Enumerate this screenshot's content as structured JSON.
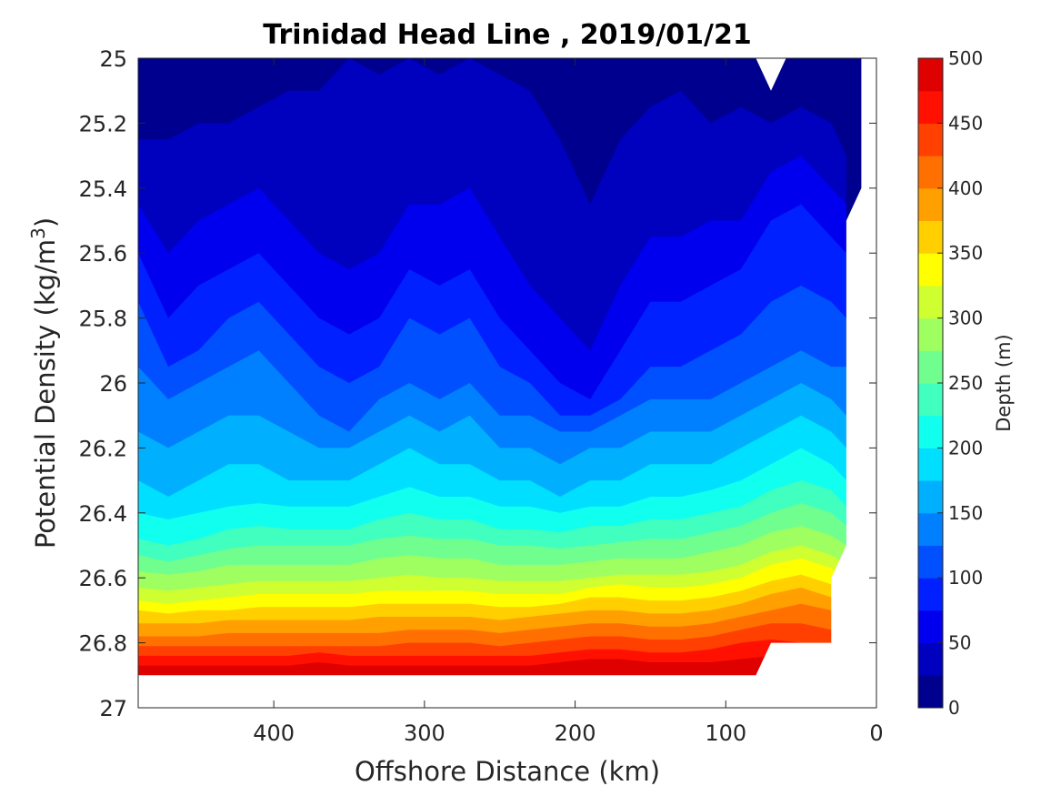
{
  "chart_data": {
    "type": "contour",
    "title": "Trinidad Head Line , 2019/01/21",
    "xlabel": "Offshore Distance (km)",
    "ylabel": "Potential Density (kg/m",
    "ylabel_sup": "3",
    "ylabel_end": ")",
    "colorbar_label": "Depth (m)",
    "x_reversed": true,
    "y_reversed": true,
    "xlim": [
      0,
      490
    ],
    "ylim": [
      25,
      27
    ],
    "xticks": [
      "400",
      "300",
      "200",
      "100",
      "0"
    ],
    "yticks": [
      "25",
      "25.2",
      "25.4",
      "25.6",
      "25.8",
      "26",
      "26.2",
      "26.4",
      "26.6",
      "26.8",
      "27"
    ],
    "colorbar_ticks": [
      "0",
      "50",
      "100",
      "150",
      "200",
      "250",
      "300",
      "350",
      "400",
      "450",
      "500"
    ],
    "clim": [
      0,
      500
    ],
    "contour_step": 25,
    "colormap": [
      "#00008f",
      "#0000bf",
      "#0000ef",
      "#0020ff",
      "#0050ff",
      "#0080ff",
      "#00b0ff",
      "#00dfff",
      "#10ffef",
      "#40ffbf",
      "#70ff8f",
      "#a0ff60",
      "#cfff30",
      "#ffff00",
      "#ffcf00",
      "#ff9f00",
      "#ff7000",
      "#ff4000",
      "#ff1000",
      "#df0000"
    ],
    "x_distance_km": [
      490,
      470,
      450,
      430,
      410,
      390,
      370,
      350,
      330,
      310,
      290,
      270,
      250,
      230,
      210,
      190,
      170,
      150,
      130,
      110,
      90,
      70,
      50,
      30,
      20
    ],
    "depth_isopycnals": [
      {
        "depth": 25,
        "sigma": [
          25.25,
          25.25,
          25.2,
          25.2,
          25.15,
          25.1,
          25.1,
          25.0,
          25.05,
          25.0,
          25.05,
          25.0,
          25.05,
          25.1,
          25.25,
          25.45,
          25.25,
          25.15,
          25.1,
          25.2,
          25.15,
          25.2,
          25.15,
          25.2,
          25.3
        ]
      },
      {
        "depth": 50,
        "sigma": [
          25.45,
          25.6,
          25.5,
          25.45,
          25.4,
          25.5,
          25.6,
          25.65,
          25.6,
          25.45,
          25.45,
          25.4,
          25.55,
          25.7,
          25.8,
          25.9,
          25.7,
          25.55,
          25.55,
          25.5,
          25.5,
          25.35,
          25.3,
          25.4,
          25.45
        ]
      },
      {
        "depth": 75,
        "sigma": [
          25.6,
          25.8,
          25.7,
          25.65,
          25.6,
          25.7,
          25.8,
          25.85,
          25.8,
          25.65,
          25.7,
          25.65,
          25.8,
          25.9,
          26.0,
          26.05,
          25.9,
          25.75,
          25.75,
          25.7,
          25.65,
          25.5,
          25.45,
          25.55,
          25.6
        ]
      },
      {
        "depth": 100,
        "sigma": [
          25.75,
          25.95,
          25.9,
          25.8,
          25.75,
          25.85,
          25.95,
          26.0,
          25.95,
          25.8,
          25.85,
          25.8,
          25.95,
          26.0,
          26.1,
          26.1,
          26.05,
          25.95,
          25.95,
          25.9,
          25.85,
          25.75,
          25.7,
          25.75,
          25.8
        ]
      },
      {
        "depth": 125,
        "sigma": [
          25.95,
          26.05,
          26.0,
          25.95,
          25.9,
          26.0,
          26.1,
          26.15,
          26.05,
          26.0,
          26.05,
          26.0,
          26.1,
          26.1,
          26.15,
          26.15,
          26.1,
          26.05,
          26.05,
          26.05,
          26.0,
          25.95,
          25.9,
          25.95,
          25.95
        ]
      },
      {
        "depth": 150,
        "sigma": [
          26.15,
          26.2,
          26.15,
          26.1,
          26.1,
          26.15,
          26.2,
          26.2,
          26.15,
          26.1,
          26.15,
          26.1,
          26.2,
          26.2,
          26.25,
          26.2,
          26.2,
          26.15,
          26.15,
          26.15,
          26.1,
          26.05,
          26.0,
          26.05,
          26.1
        ]
      },
      {
        "depth": 175,
        "sigma": [
          26.3,
          26.35,
          26.3,
          26.25,
          26.25,
          26.3,
          26.3,
          26.3,
          26.25,
          26.2,
          26.25,
          26.25,
          26.3,
          26.3,
          26.35,
          26.3,
          26.3,
          26.25,
          26.25,
          26.25,
          26.2,
          26.15,
          26.1,
          26.15,
          26.2
        ]
      },
      {
        "depth": 200,
        "sigma": [
          26.4,
          26.42,
          26.4,
          26.38,
          26.37,
          26.38,
          26.38,
          26.38,
          26.35,
          26.32,
          26.35,
          26.35,
          26.38,
          26.38,
          26.4,
          26.38,
          26.38,
          26.35,
          26.35,
          26.33,
          26.3,
          26.25,
          26.2,
          26.25,
          26.3
        ]
      },
      {
        "depth": 225,
        "sigma": [
          26.48,
          26.5,
          26.48,
          26.45,
          26.44,
          26.45,
          26.45,
          26.45,
          26.42,
          26.4,
          26.42,
          26.42,
          26.45,
          26.45,
          26.46,
          26.44,
          26.44,
          26.42,
          26.42,
          26.4,
          26.38,
          26.33,
          26.3,
          26.33,
          26.38
        ]
      },
      {
        "depth": 250,
        "sigma": [
          26.53,
          26.55,
          26.53,
          26.51,
          26.5,
          26.5,
          26.5,
          26.5,
          26.48,
          26.47,
          26.48,
          26.48,
          26.5,
          26.5,
          26.51,
          26.5,
          26.49,
          26.48,
          26.48,
          26.46,
          26.44,
          26.4,
          26.37,
          26.4,
          26.44
        ]
      },
      {
        "depth": 275,
        "sigma": [
          26.58,
          26.59,
          26.58,
          26.56,
          26.56,
          26.56,
          26.56,
          26.56,
          26.54,
          26.53,
          26.54,
          26.54,
          26.56,
          26.56,
          26.56,
          26.55,
          26.54,
          26.54,
          26.54,
          26.52,
          26.5,
          26.46,
          26.44,
          26.47,
          26.5
        ]
      },
      {
        "depth": 300,
        "sigma": [
          26.63,
          26.64,
          26.63,
          26.62,
          26.61,
          26.61,
          26.61,
          26.61,
          26.6,
          26.59,
          26.6,
          26.6,
          26.61,
          26.61,
          26.61,
          26.6,
          26.59,
          26.59,
          26.59,
          26.58,
          26.56,
          26.52,
          26.5,
          26.53,
          26.56
        ]
      },
      {
        "depth": 325,
        "sigma": [
          26.67,
          26.68,
          26.67,
          26.66,
          26.65,
          26.65,
          26.65,
          26.65,
          26.64,
          26.64,
          26.64,
          26.64,
          26.65,
          26.65,
          26.65,
          26.63,
          26.62,
          26.63,
          26.63,
          26.62,
          26.6,
          26.56,
          26.54,
          26.57,
          26.6
        ]
      },
      {
        "depth": 350,
        "sigma": [
          26.7,
          26.71,
          26.7,
          26.7,
          26.69,
          26.69,
          26.69,
          26.69,
          26.68,
          26.68,
          26.68,
          26.68,
          26.69,
          26.69,
          26.68,
          26.66,
          26.66,
          26.67,
          26.67,
          26.66,
          26.64,
          26.61,
          26.59,
          26.62,
          26.65
        ]
      },
      {
        "depth": 375,
        "sigma": [
          26.74,
          26.74,
          26.74,
          26.73,
          26.73,
          26.73,
          26.73,
          26.73,
          26.72,
          26.72,
          26.72,
          26.72,
          26.73,
          26.72,
          26.71,
          26.7,
          26.7,
          26.71,
          26.71,
          26.7,
          26.68,
          26.65,
          26.63,
          26.66,
          26.69
        ]
      },
      {
        "depth": 400,
        "sigma": [
          26.78,
          26.78,
          26.78,
          26.77,
          26.77,
          26.77,
          26.77,
          26.77,
          26.77,
          26.76,
          26.76,
          26.76,
          26.77,
          26.76,
          26.75,
          26.74,
          26.74,
          26.75,
          26.75,
          26.74,
          26.72,
          26.7,
          26.68,
          26.7,
          26.73
        ]
      },
      {
        "depth": 425,
        "sigma": [
          26.81,
          26.81,
          26.81,
          26.81,
          26.81,
          26.81,
          26.81,
          26.81,
          26.81,
          26.8,
          26.8,
          26.8,
          26.81,
          26.8,
          26.79,
          26.78,
          26.78,
          26.79,
          26.79,
          26.78,
          26.76,
          26.74,
          26.74,
          26.76,
          26.78
        ]
      },
      {
        "depth": 450,
        "sigma": [
          26.84,
          26.84,
          26.84,
          26.84,
          26.84,
          26.84,
          26.83,
          26.84,
          26.84,
          26.84,
          26.84,
          26.84,
          26.84,
          26.84,
          26.83,
          26.82,
          26.82,
          26.83,
          26.83,
          26.82,
          26.8,
          26.79,
          26.8,
          26.82,
          26.84
        ]
      },
      {
        "depth": 475,
        "sigma": [
          26.87,
          26.87,
          26.87,
          26.87,
          26.87,
          26.87,
          26.86,
          26.87,
          26.87,
          26.87,
          26.87,
          26.87,
          26.87,
          26.87,
          26.86,
          26.85,
          26.85,
          26.86,
          26.86,
          26.86,
          26.85,
          26.84,
          26.85,
          26.87,
          26.88
        ]
      }
    ],
    "bottom_boundary": {
      "x_km": [
        490,
        80,
        70,
        30,
        30,
        20,
        20
      ],
      "sigma": [
        26.9,
        26.9,
        26.8,
        26.8,
        26.6,
        26.5,
        25.5
      ]
    },
    "right_boundary": {
      "x_km": [
        20,
        10,
        10
      ],
      "sigma": [
        25.5,
        25.4,
        25.0
      ]
    },
    "top_notch": {
      "x_km": [
        80,
        70,
        60
      ],
      "sigma": [
        25.0,
        25.1,
        25.0
      ]
    }
  }
}
